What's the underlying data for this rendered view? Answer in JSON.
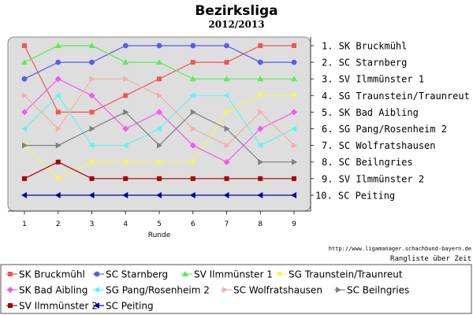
{
  "chart_data": {
    "type": "line",
    "title": "Bezirksliga",
    "subtitle": "2012/2013",
    "xlabel": "Runde",
    "ylabel": "",
    "x": [
      1,
      2,
      3,
      4,
      5,
      6,
      7,
      8,
      9
    ],
    "xlim": [
      0.5,
      9.5
    ],
    "ylim": [
      0.5,
      10.5
    ],
    "y_inverted": true,
    "grid": false,
    "rank_labels": [
      "1.  SK Bruckmühl",
      "2.  SC Starnberg",
      "3.  SV Ilmmünster 1",
      "4.  SG Traunstein/Traunreut",
      "5.  SK Bad Aibling",
      "6.  SG Pang/Rosenheim 2",
      "7.  SC Wolfratshausen",
      "8.  SC Beilngries",
      "9.  SV Ilmmünster 2",
      "10. SC Peiting"
    ],
    "source_url": "http://www.ligamanager.schachbund-bayern.de",
    "caption": "Rangliste über Zeit",
    "legend_position": "bottom",
    "series": [
      {
        "name": "SK Bruckmühl",
        "color": "#f25454",
        "marker": "square",
        "values": [
          1,
          5,
          5,
          4,
          3,
          2,
          2,
          1,
          1
        ]
      },
      {
        "name": "SC Starnberg",
        "color": "#5a5aef",
        "marker": "circle",
        "values": [
          3,
          2,
          2,
          1,
          1,
          1,
          1,
          2,
          2
        ]
      },
      {
        "name": "SV Ilmmünster 1",
        "color": "#55ef55",
        "marker": "triangle-up",
        "values": [
          2,
          1,
          1,
          2,
          2,
          3,
          3,
          3,
          3
        ]
      },
      {
        "name": "SG Traunstein/Traunreut",
        "color": "#f5f555",
        "marker": "triangle-down",
        "values": [
          7,
          9,
          8,
          8,
          8,
          8,
          5,
          4,
          4
        ]
      },
      {
        "name": "SK Bad Aibling",
        "color": "#f258f2",
        "marker": "diamond",
        "values": [
          5,
          3,
          4,
          6,
          5,
          7,
          8,
          6,
          5
        ]
      },
      {
        "name": "SG Pang/Rosenheim 2",
        "color": "#5cf5f5",
        "marker": "triangle-left",
        "values": [
          6,
          4,
          7,
          7,
          6,
          4,
          4,
          7,
          6
        ]
      },
      {
        "name": "SC Wolfratshausen",
        "color": "#f4b0a6",
        "marker": "triangle-right",
        "values": [
          4,
          6,
          3,
          3,
          4,
          6,
          7,
          5,
          7
        ]
      },
      {
        "name": "SC Beilngries",
        "color": "#808080",
        "marker": "triangle-right",
        "values": [
          7,
          7,
          6,
          5,
          7,
          5,
          6,
          8,
          8
        ]
      },
      {
        "name": "SV Ilmmünster 2",
        "color": "#aa0000",
        "marker": "square",
        "values": [
          9,
          8,
          9,
          9,
          9,
          9,
          9,
          9,
          9
        ]
      },
      {
        "name": "SC Peiting",
        "color": "#0000aa",
        "marker": "triangle-left",
        "values": [
          10,
          10,
          10,
          10,
          10,
          10,
          10,
          10,
          10
        ]
      }
    ]
  }
}
